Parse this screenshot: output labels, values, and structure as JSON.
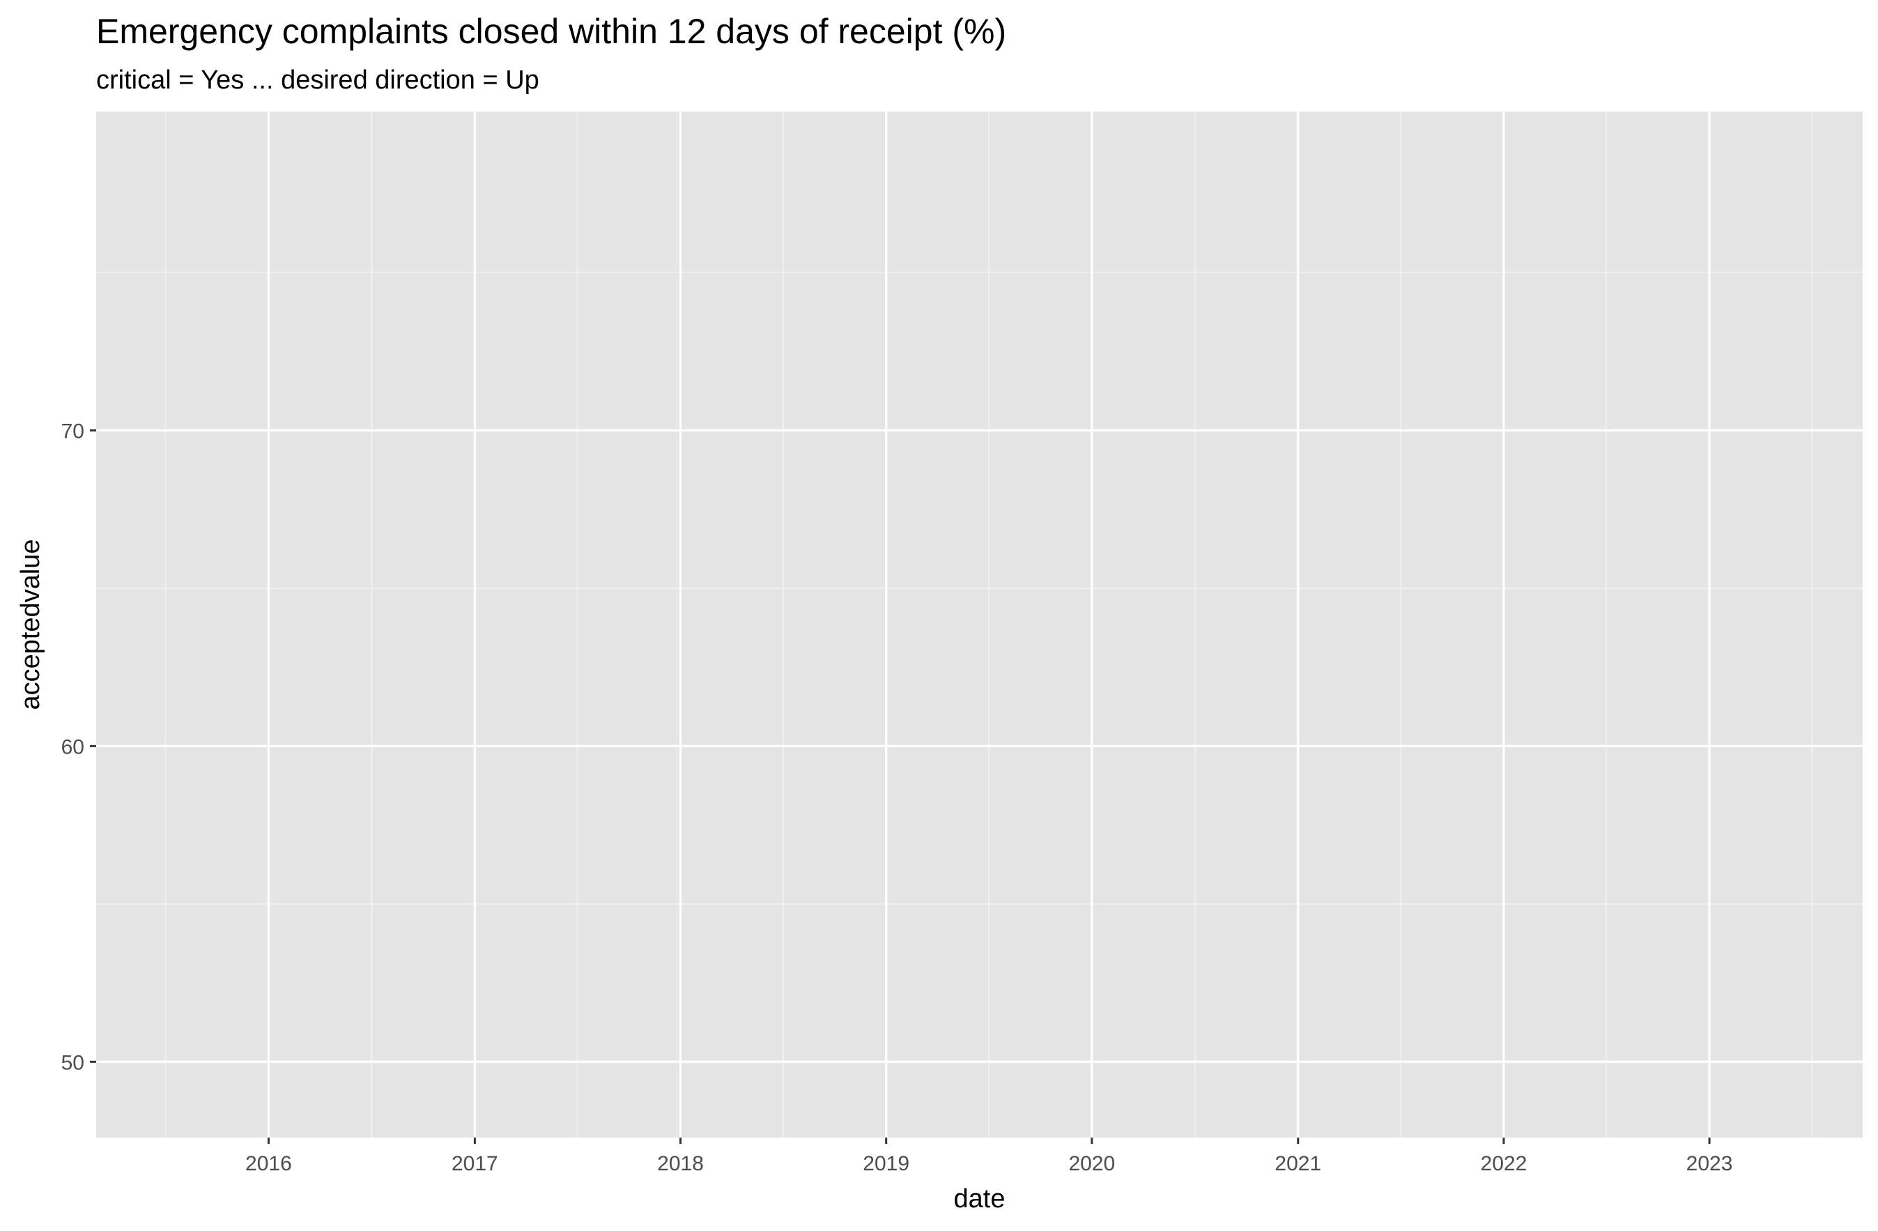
{
  "chart_data": {
    "type": "line",
    "title": "Emergency complaints closed within 12 days of receipt (%)",
    "subtitle": "critical = Yes ... desired direction = Up",
    "xlabel": "date",
    "ylabel": "acceptedvalue",
    "x_ticks": [
      "2016",
      "2017",
      "2018",
      "2019",
      "2020",
      "2021",
      "2022",
      "2023"
    ],
    "y_ticks": [
      50,
      60,
      70
    ],
    "xlim": [
      "2015-03-01",
      "2023-09-30"
    ],
    "ylim": [
      47.6,
      80.1
    ],
    "grid": true,
    "legend": "none",
    "series": [],
    "colors": {
      "panel_background": "#e5e5e5",
      "grid_major": "#ffffff",
      "grid_minor": "#f2f2f2",
      "tick_text": "#4d4d4d",
      "axis_tick": "#333333",
      "text": "#000000"
    }
  }
}
